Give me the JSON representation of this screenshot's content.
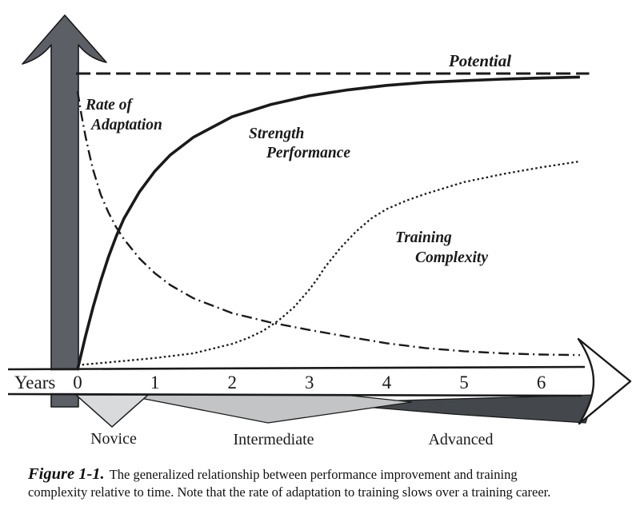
{
  "labels": {
    "potential": "Potential",
    "rate_line1": "Rate of",
    "rate_line2": "Adaptation",
    "strength_line1": "Strength",
    "strength_line2": "Performance",
    "training_line1": "Training",
    "training_line2": "Complexity",
    "years": "Years"
  },
  "stages": {
    "novice": "Novice",
    "intermediate": "Intermediate",
    "advanced": "Advanced"
  },
  "caption": {
    "label": "Figure 1-1.",
    "line1": "The generalized relationship between performance improvement and training",
    "line2": "complexity relative to time. Note that the rate of adaptation to training slows over a training career."
  },
  "colors": {
    "line": "#1a1a1a",
    "arrow": "#5c5f66",
    "novice_fill": "#d9dadb",
    "intermediate_fill": "#c2c4c6",
    "advanced_fill": "#44474c",
    "band_fill": "#ffffff"
  },
  "chart_data": {
    "type": "line",
    "title": "Generalized relationship between performance improvement and training complexity over time",
    "xlabel": "Years",
    "ylabel": "",
    "x_ticks": [
      0,
      1,
      2,
      3,
      4,
      5,
      6
    ],
    "x_range": [
      0,
      6.6
    ],
    "y_range_percent_of_potential": [
      0,
      100
    ],
    "grid": false,
    "legend": "labels placed next to curves",
    "series": [
      {
        "name": "Potential",
        "style": "dashed",
        "x": [
          -0.02,
          6.62
        ],
        "values": [
          100,
          100
        ]
      },
      {
        "name": "Strength Performance",
        "style": "solid",
        "x": [
          0,
          0.1,
          0.2,
          0.3,
          0.4,
          0.5,
          0.6,
          0.8,
          1,
          1.2,
          1.5,
          2,
          2.5,
          3,
          3.5,
          4,
          4.5,
          5,
          5.5,
          6,
          6.5
        ],
        "values": [
          0,
          11,
          21,
          30,
          38,
          45,
          51,
          60,
          67,
          72.5,
          78.5,
          85.4,
          89.5,
          92.5,
          94.5,
          96,
          97,
          97.6,
          98.1,
          98.5,
          98.8
        ]
      },
      {
        "name": "Rate of Adaptation",
        "style": "dashdot",
        "x": [
          0,
          0.05,
          0.1,
          0.15,
          0.2,
          0.3,
          0.4,
          0.5,
          0.6,
          0.8,
          1,
          1.2,
          1.5,
          2,
          2.5,
          3,
          3.5,
          4,
          4.5,
          5,
          5.5,
          6,
          6.5
        ],
        "values": [
          94,
          86,
          79,
          73,
          67.5,
          59,
          53,
          48,
          44,
          37.5,
          32.5,
          28.5,
          24,
          19,
          15.8,
          13.3,
          11,
          8.8,
          7.2,
          6.1,
          5.4,
          5,
          4.8
        ]
      },
      {
        "name": "Training Complexity",
        "style": "dotted",
        "x": [
          0,
          0.5,
          1,
          1.5,
          2,
          2.2,
          2.4,
          2.6,
          2.8,
          3,
          3.1,
          3.2,
          3.4,
          3.6,
          3.8,
          4,
          4.25,
          4.5,
          5,
          5.5,
          6,
          6.5
        ],
        "values": [
          1.4,
          2.6,
          3.8,
          5.4,
          8.6,
          10.5,
          13,
          16.5,
          21,
          27,
          30.5,
          34.5,
          41,
          46.5,
          51,
          54.2,
          57,
          59.3,
          63.3,
          66,
          68.3,
          70.3
        ]
      }
    ],
    "levels": [
      {
        "label": "Novice",
        "from_years": 0,
        "to_years": 0.9
      },
      {
        "label": "Intermediate",
        "from_years": 0.6,
        "to_years": 4.3
      },
      {
        "label": "Advanced",
        "from_years": 3.1,
        "to_years": 6.6
      }
    ]
  }
}
